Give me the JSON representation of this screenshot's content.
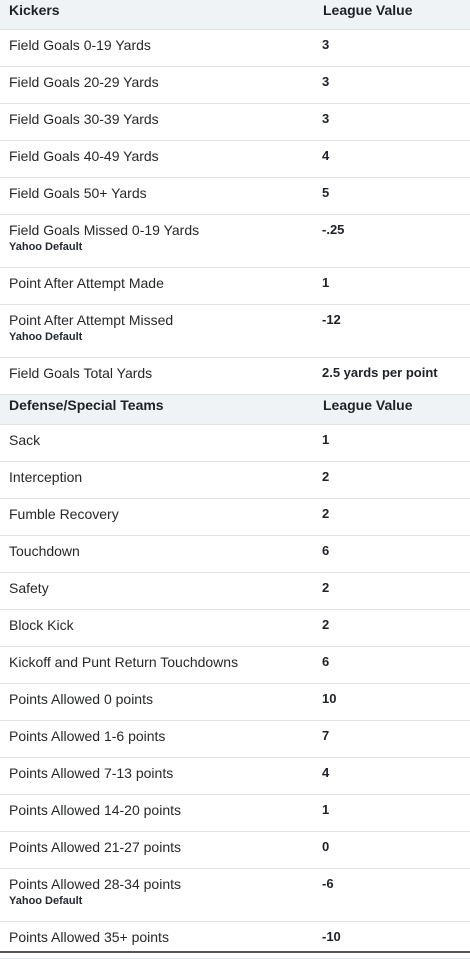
{
  "sections": [
    {
      "header": "Kickers",
      "value_header": "League Value",
      "rows": [
        {
          "label": "Field Goals 0-19 Yards",
          "value": "3"
        },
        {
          "label": "Field Goals 20-29 Yards",
          "value": "3"
        },
        {
          "label": "Field Goals 30-39 Yards",
          "value": "3"
        },
        {
          "label": "Field Goals 40-49 Yards",
          "value": "4"
        },
        {
          "label": "Field Goals 50+ Yards",
          "value": "5"
        },
        {
          "label": "Field Goals Missed 0-19 Yards",
          "sub": "Yahoo Default",
          "value": "-.25"
        },
        {
          "label": "Point After Attempt Made",
          "value": "1"
        },
        {
          "label": "Point After Attempt Missed",
          "sub": "Yahoo Default",
          "value": "-12"
        },
        {
          "label": "Field Goals Total Yards",
          "value": "2.5 yards per point"
        }
      ]
    },
    {
      "header": "Defense/Special Teams",
      "value_header": "League Value",
      "rows": [
        {
          "label": "Sack",
          "value": "1"
        },
        {
          "label": "Interception",
          "value": "2"
        },
        {
          "label": "Fumble Recovery",
          "value": "2"
        },
        {
          "label": "Touchdown",
          "value": "6"
        },
        {
          "label": "Safety",
          "value": "2"
        },
        {
          "label": "Block Kick",
          "value": "2"
        },
        {
          "label": "Kickoff and Punt Return Touchdowns",
          "value": "6"
        },
        {
          "label": "Points Allowed 0 points",
          "value": "10"
        },
        {
          "label": "Points Allowed 1-6 points",
          "value": "7"
        },
        {
          "label": "Points Allowed 7-13 points",
          "value": "4"
        },
        {
          "label": "Points Allowed 14-20 points",
          "value": "1"
        },
        {
          "label": "Points Allowed 21-27 points",
          "value": "0"
        },
        {
          "label": "Points Allowed 28-34 points",
          "sub": "Yahoo Default",
          "value": "-6"
        },
        {
          "label": "Points Allowed 35+ points",
          "value": "-10"
        }
      ]
    }
  ]
}
